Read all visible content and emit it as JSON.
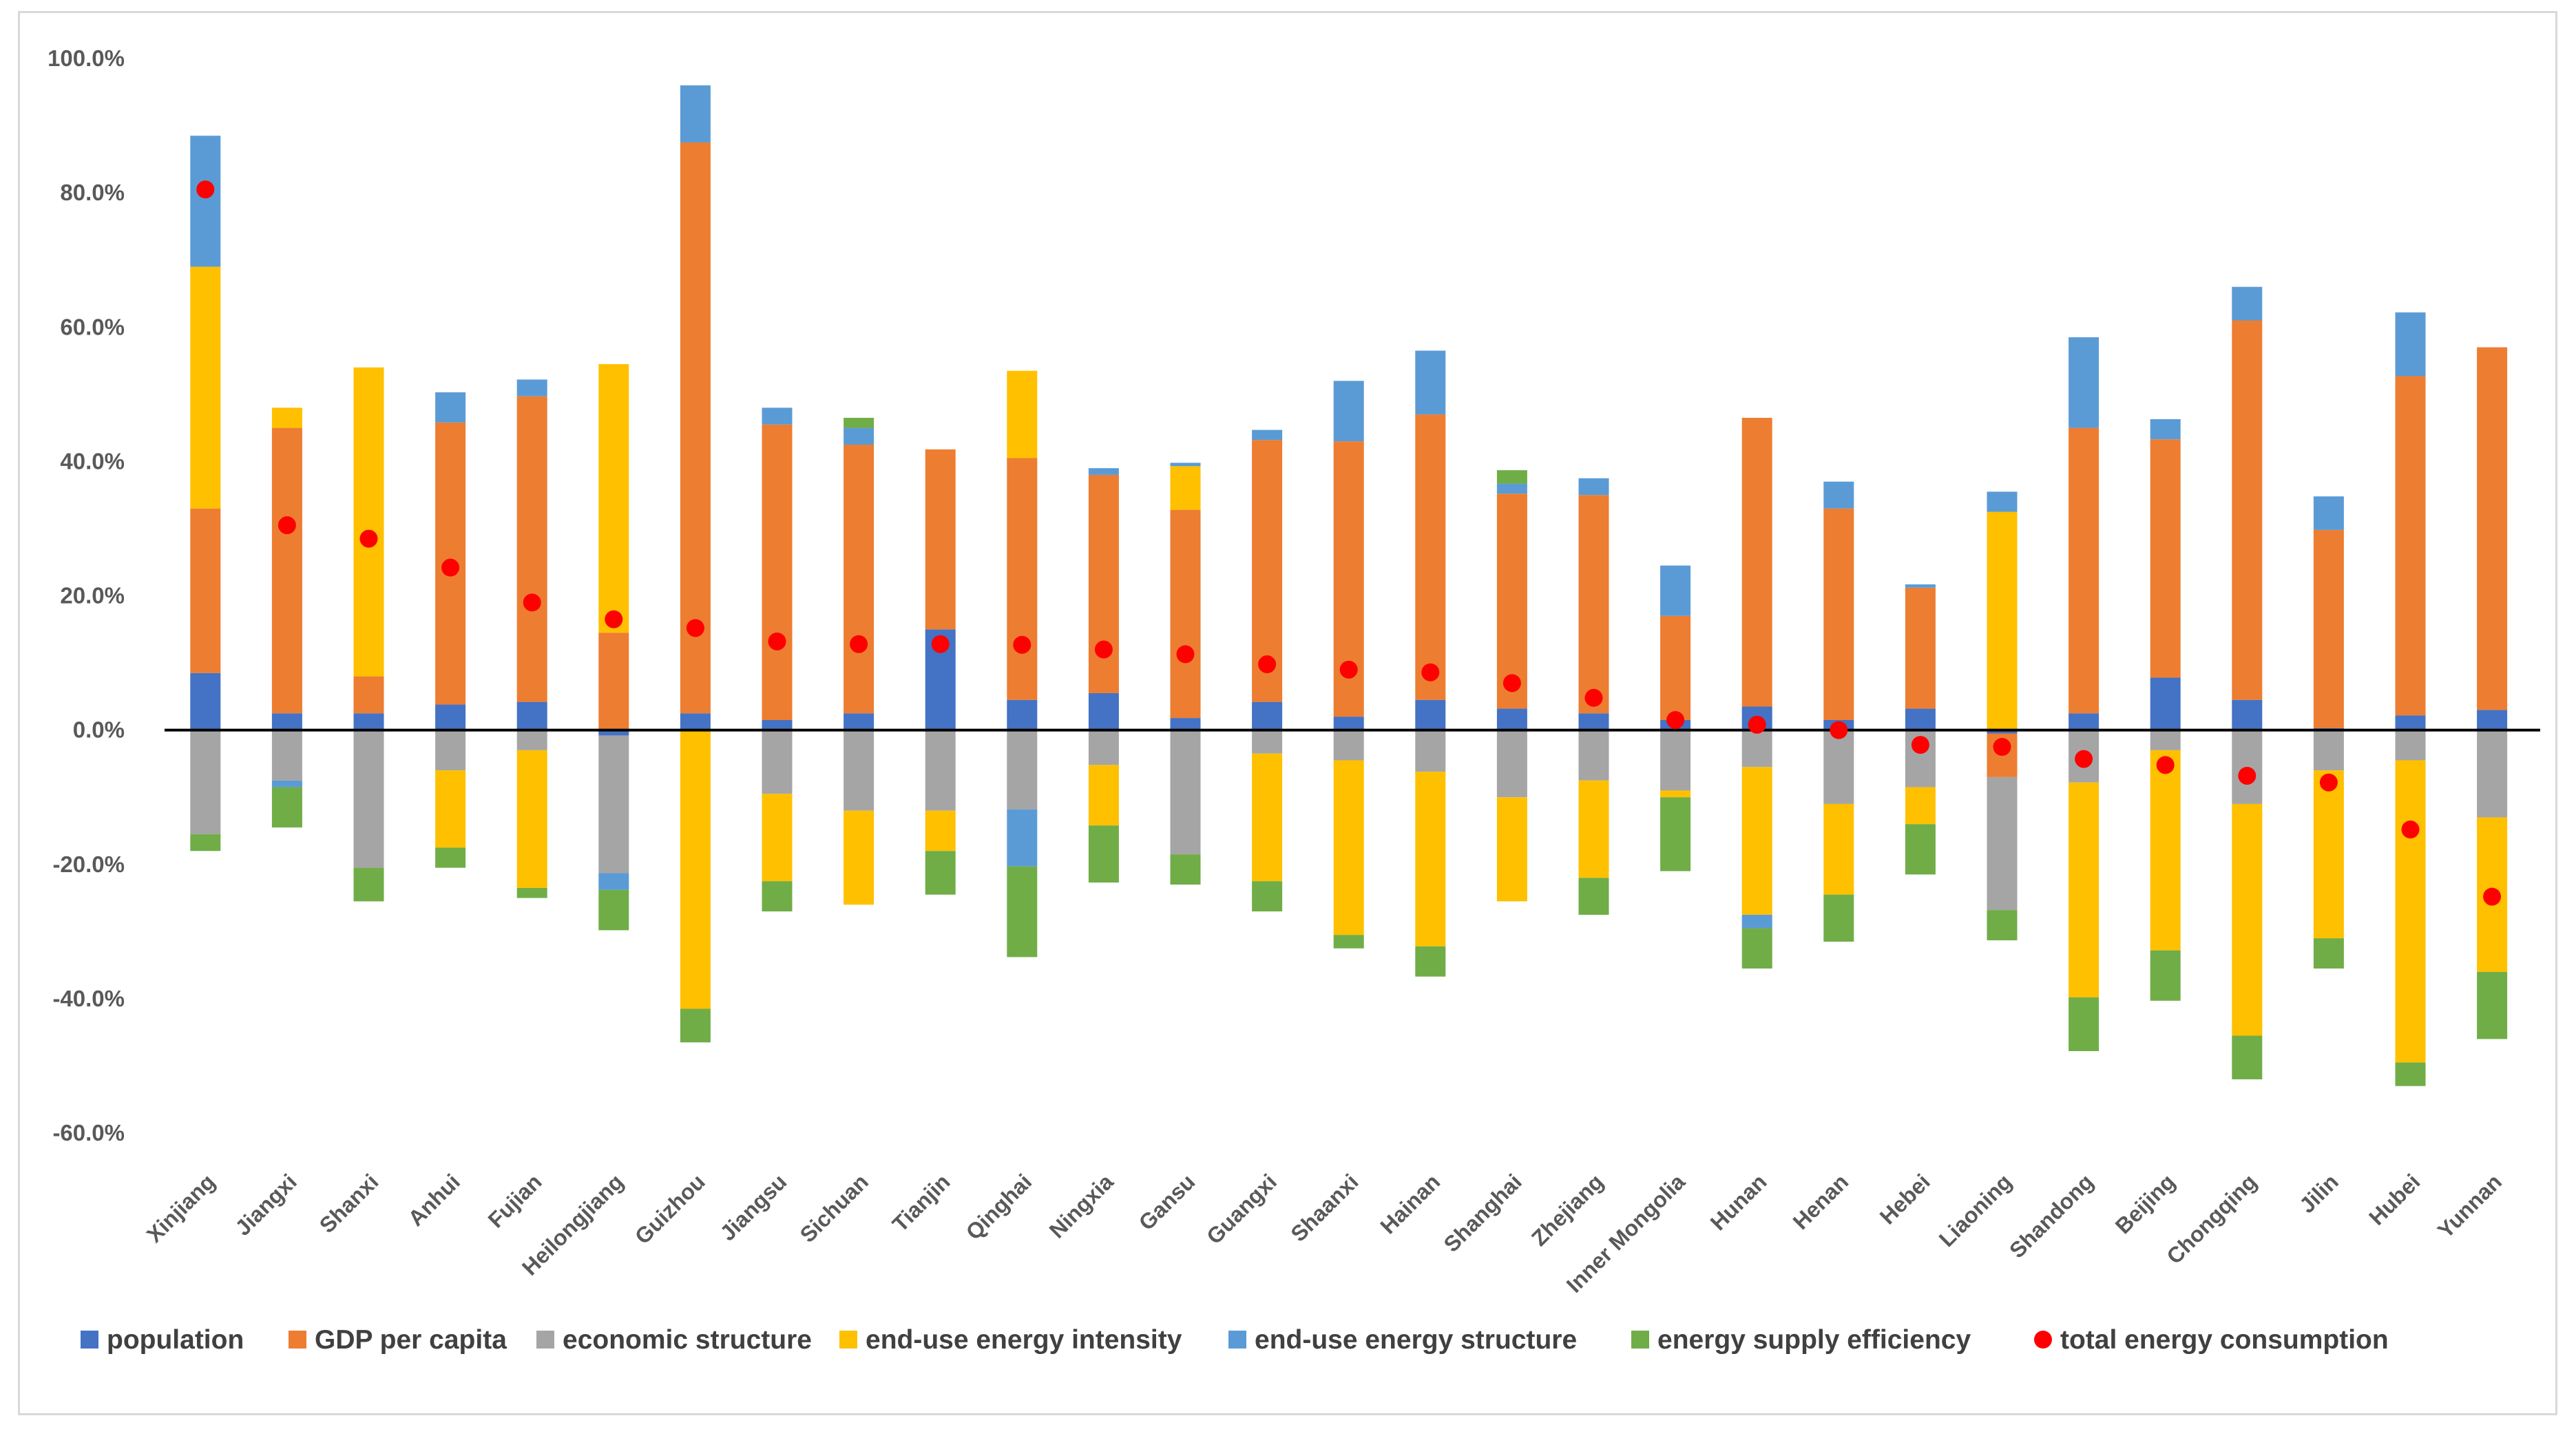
{
  "chart_data": {
    "type": "bar",
    "stacked": true,
    "title": "",
    "xlabel": "",
    "ylabel": "",
    "ylim": [
      -60,
      100
    ],
    "y_ticks": [
      100,
      80,
      60,
      40,
      20,
      0,
      -20,
      -40,
      -60
    ],
    "y_tick_labels": [
      "100.0%",
      "80.0%",
      "60.0%",
      "40.0%",
      "20.0%",
      "0.0%",
      "-20.0%",
      "-40.0%",
      "-60.0%"
    ],
    "grid": false,
    "legend_position": "bottom",
    "categories": [
      "Xinjiang",
      "Jiangxi",
      "Shanxi",
      "Anhui",
      "Fujian",
      "Heilongjiang",
      "Guizhou",
      "Jiangsu",
      "Sichuan",
      "Tianjin",
      "Qinghai",
      "Ningxia",
      "Gansu",
      "Guangxi",
      "Shaanxi",
      "Hainan",
      "Shanghai",
      "Zhejiang",
      "Inner Mongolia",
      "Hunan",
      "Henan",
      "Hebei",
      "Liaoning",
      "Shandong",
      "Beijing",
      "Chongqing",
      "Jilin",
      "Hubei",
      "Yunnan"
    ],
    "series": [
      {
        "name": "population",
        "color": "#4472C4",
        "values": [
          8.5,
          2.5,
          2.5,
          3.8,
          4.2,
          -0.8,
          2.5,
          1.5,
          2.5,
          15.0,
          4.5,
          5.5,
          1.8,
          4.2,
          2.0,
          4.5,
          3.2,
          2.5,
          1.5,
          3.5,
          1.5,
          3.2,
          -0.5,
          2.5,
          7.8,
          4.5,
          0.3,
          2.2,
          3.0
        ]
      },
      {
        "name": "GDP per capita",
        "color": "#ED7D31",
        "values": [
          24.5,
          42.5,
          5.5,
          42.0,
          45.5,
          14.5,
          85.0,
          44.0,
          40.0,
          26.8,
          36.0,
          32.5,
          31.0,
          39.0,
          41.0,
          42.5,
          32.0,
          32.5,
          15.5,
          43.0,
          31.5,
          18.0,
          -6.5,
          42.5,
          35.5,
          56.5,
          29.5,
          50.5,
          54.0
        ]
      },
      {
        "name": "economic structure",
        "color": "#A5A5A5",
        "values": [
          -15.5,
          -7.5,
          -20.5,
          -6.0,
          -3.0,
          -20.5,
          0.0,
          -9.5,
          -12.0,
          -12.0,
          -11.8,
          -5.2,
          -18.5,
          -3.5,
          -4.5,
          -6.2,
          -10.0,
          -7.5,
          -9.0,
          -5.5,
          -11.0,
          -8.5,
          -19.8,
          -7.8,
          -3.0,
          -11.0,
          -6.0,
          -4.5,
          -13.0
        ]
      },
      {
        "name": "end-use energy intensity",
        "color": "#FFC000",
        "values": [
          36.0,
          3.0,
          46.0,
          -11.5,
          -20.5,
          40.0,
          -41.5,
          -13.0,
          -14.0,
          -6.0,
          13.0,
          -9.0,
          6.5,
          -19.0,
          -26.0,
          -26.0,
          -15.5,
          -14.5,
          -1.0,
          -22.0,
          -13.5,
          -5.5,
          32.5,
          -32.0,
          -29.8,
          -34.5,
          -25.0,
          -45.0,
          -23.0
        ]
      },
      {
        "name": "end-use energy structure",
        "color": "#5B9BD5",
        "values": [
          19.5,
          -1.0,
          0.0,
          4.5,
          2.5,
          -2.5,
          8.5,
          2.5,
          2.5,
          0.0,
          -8.5,
          1.0,
          0.5,
          1.5,
          9.0,
          9.5,
          1.5,
          2.5,
          7.5,
          -2.0,
          4.0,
          0.5,
          3.0,
          13.5,
          3.0,
          5.0,
          5.0,
          9.5,
          0.0
        ]
      },
      {
        "name": "energy supply efficiency",
        "color": "#70AD47",
        "values": [
          -2.5,
          -6.0,
          -5.0,
          -3.0,
          -1.5,
          -6.0,
          -5.0,
          -4.5,
          1.5,
          -6.5,
          -13.5,
          -8.5,
          -4.5,
          -4.5,
          -2.0,
          -4.5,
          2.0,
          -5.5,
          -11.0,
          -6.0,
          -7.0,
          -7.5,
          -4.5,
          -8.0,
          -7.5,
          -6.5,
          -4.5,
          -3.5,
          -10.0
        ]
      }
    ],
    "total": {
      "name": "total energy consumption",
      "color": "#FF0000",
      "values": [
        80.5,
        30.5,
        28.5,
        24.2,
        19.0,
        16.5,
        15.2,
        13.2,
        12.8,
        12.8,
        12.7,
        12.0,
        11.3,
        9.8,
        9.0,
        8.6,
        7.0,
        4.8,
        1.5,
        0.8,
        0.0,
        -2.2,
        -2.5,
        -4.3,
        -5.2,
        -6.8,
        -7.8,
        -14.8,
        -24.8
      ]
    }
  }
}
